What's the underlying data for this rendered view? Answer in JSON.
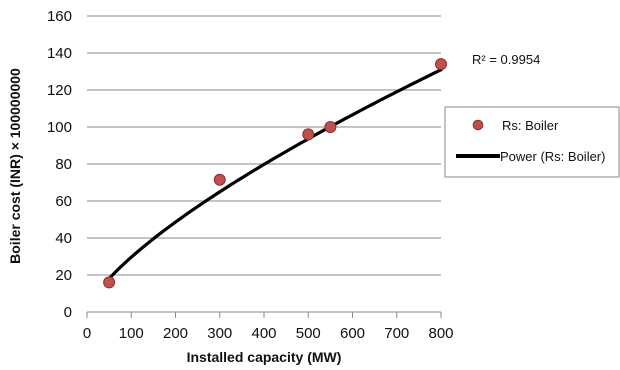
{
  "chart_data": {
    "type": "scatter",
    "xlabel": "Installed capacity (MW)",
    "ylabel": "Boiler cost (INR) × 100000000",
    "xlim": [
      0,
      800
    ],
    "ylim": [
      0,
      160
    ],
    "x_ticks": [
      "0",
      "100",
      "200",
      "300",
      "400",
      "500",
      "600",
      "700",
      "800"
    ],
    "y_ticks": [
      "0",
      "20",
      "40",
      "60",
      "80",
      "100",
      "120",
      "140",
      "160"
    ],
    "grid": "horizontal",
    "legend_position": "right",
    "series": [
      {
        "name": "Rs: Boiler",
        "type": "scatter",
        "color": "#c0504d",
        "edge_color": "#8b2f2c",
        "points": [
          {
            "x": 50,
            "y": 16
          },
          {
            "x": 300,
            "y": 71.5
          },
          {
            "x": 500,
            "y": 96
          },
          {
            "x": 550,
            "y": 100
          },
          {
            "x": 800,
            "y": 134
          }
        ]
      },
      {
        "name": "Power (Rs: Boiler)",
        "type": "power-trendline",
        "color": "#000000",
        "x_range": [
          50,
          800
        ],
        "model": {
          "a": 1.1,
          "b": 0.715
        }
      }
    ],
    "annotations": [
      {
        "text": "R² = 0.9954"
      }
    ]
  }
}
